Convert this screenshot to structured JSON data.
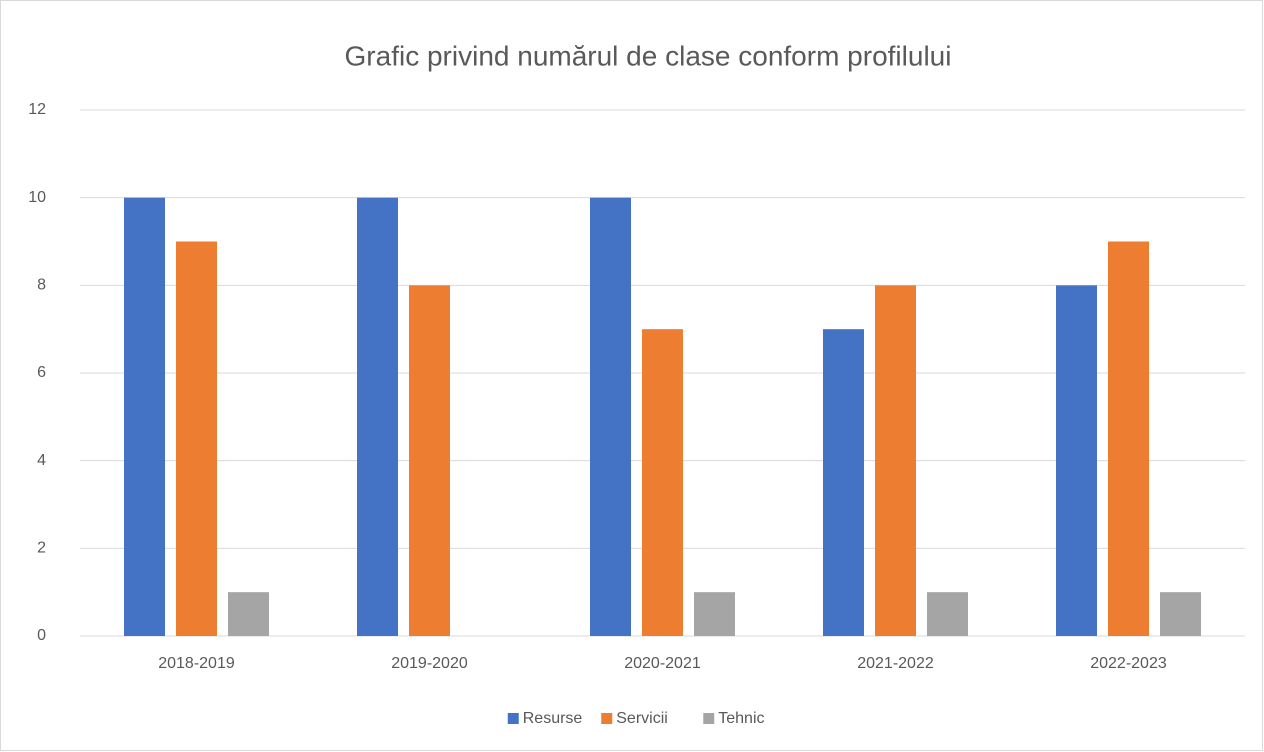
{
  "chart_data": {
    "type": "bar",
    "title": "Grafic privind numărul de clase conform profilului",
    "categories": [
      "2018-2019",
      "2019-2020",
      "2020-2021",
      "2021-2022",
      "2022-2023"
    ],
    "series": [
      {
        "name": "Resurse",
        "color": "#4472c4",
        "values": [
          10,
          10,
          10,
          7,
          8
        ]
      },
      {
        "name": "Servicii",
        "color": "#ed7d31",
        "values": [
          9,
          8,
          7,
          8,
          9
        ]
      },
      {
        "name": "Tehnic",
        "color": "#a5a5a5",
        "values": [
          1,
          0,
          1,
          1,
          1
        ]
      }
    ],
    "ylim": [
      0,
      12
    ],
    "yticks": [
      0,
      2,
      4,
      6,
      8,
      10,
      12
    ],
    "grid": true,
    "legend": "bottom"
  }
}
